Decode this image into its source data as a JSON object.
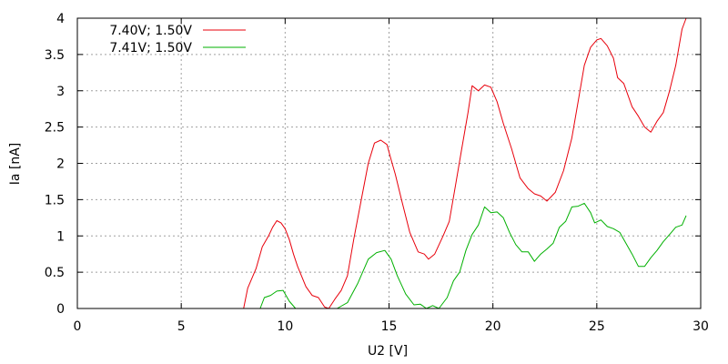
{
  "chart_data": {
    "type": "line",
    "title": "",
    "xlabel": "U2 [V]",
    "ylabel": "Ia [nA]",
    "xlim": [
      0,
      30
    ],
    "ylim": [
      0,
      4
    ],
    "x_ticks": [
      "0",
      "5",
      "10",
      "15",
      "20",
      "25",
      "30"
    ],
    "y_ticks": [
      "0",
      "0.5",
      "1",
      "1.5",
      "2",
      "2.5",
      "3",
      "3.5",
      "4"
    ],
    "grid": true,
    "legend_position": "top-left",
    "series": [
      {
        "name": "7.40V; 1.50V",
        "color": "#e8000b",
        "x": [
          8.0,
          8.2,
          8.6,
          8.9,
          9.2,
          9.4,
          9.6,
          9.8,
          10.0,
          10.2,
          10.4,
          10.6,
          11.0,
          11.3,
          11.6,
          11.9,
          12.1,
          12.4,
          12.7,
          13.0,
          13.3,
          13.7,
          14.0,
          14.3,
          14.6,
          14.9,
          15.1,
          15.3,
          15.6,
          16.0,
          16.4,
          16.7,
          16.9,
          17.2,
          17.6,
          17.9,
          18.2,
          18.5,
          18.8,
          19.0,
          19.3,
          19.6,
          19.9,
          20.2,
          20.5,
          20.9,
          21.3,
          21.7,
          22.0,
          22.3,
          22.6,
          23.0,
          23.4,
          23.8,
          24.1,
          24.4,
          24.7,
          25.0,
          25.2,
          25.5,
          25.8,
          26.0,
          26.3,
          26.7,
          27.0,
          27.3,
          27.6,
          27.9,
          28.2,
          28.5,
          28.8,
          29.1,
          29.3
        ],
        "y": [
          0.0,
          0.28,
          0.55,
          0.85,
          1.0,
          1.12,
          1.21,
          1.18,
          1.1,
          0.95,
          0.75,
          0.58,
          0.3,
          0.18,
          0.15,
          0.02,
          0.0,
          0.13,
          0.25,
          0.45,
          0.95,
          1.55,
          2.0,
          2.28,
          2.32,
          2.26,
          2.05,
          1.85,
          1.5,
          1.05,
          0.78,
          0.75,
          0.68,
          0.75,
          1.0,
          1.2,
          1.7,
          2.2,
          2.7,
          3.07,
          3.0,
          3.08,
          3.05,
          2.85,
          2.55,
          2.2,
          1.8,
          1.65,
          1.58,
          1.55,
          1.48,
          1.6,
          1.9,
          2.35,
          2.85,
          3.35,
          3.6,
          3.7,
          3.72,
          3.62,
          3.45,
          3.18,
          3.1,
          2.78,
          2.65,
          2.5,
          2.43,
          2.58,
          2.7,
          3.0,
          3.35,
          3.85,
          4.0
        ]
      },
      {
        "name": "7.41V; 1.50V",
        "color": "#00b000",
        "x": [
          8.8,
          9.0,
          9.3,
          9.6,
          9.9,
          10.2,
          10.5,
          10.8,
          11.2,
          11.6,
          12.0,
          12.5,
          13.0,
          13.5,
          14.0,
          14.4,
          14.8,
          15.1,
          15.4,
          15.8,
          16.2,
          16.5,
          16.8,
          17.1,
          17.4,
          17.8,
          18.1,
          18.4,
          18.7,
          19.0,
          19.3,
          19.6,
          19.9,
          20.2,
          20.5,
          20.8,
          21.1,
          21.4,
          21.7,
          22.0,
          22.3,
          22.6,
          22.9,
          23.2,
          23.5,
          23.8,
          24.1,
          24.4,
          24.7,
          24.9,
          25.2,
          25.5,
          25.8,
          26.1,
          26.4,
          26.7,
          27.0,
          27.3,
          27.6,
          27.9,
          28.2,
          28.5,
          28.8,
          29.1,
          29.3
        ],
        "y": [
          0.0,
          0.15,
          0.18,
          0.24,
          0.25,
          0.1,
          0.0,
          0.0,
          0.0,
          0.0,
          0.0,
          0.0,
          0.08,
          0.35,
          0.68,
          0.77,
          0.8,
          0.68,
          0.45,
          0.2,
          0.05,
          0.06,
          0.0,
          0.04,
          0.0,
          0.15,
          0.38,
          0.5,
          0.8,
          1.02,
          1.15,
          1.4,
          1.32,
          1.33,
          1.25,
          1.05,
          0.88,
          0.78,
          0.78,
          0.65,
          0.75,
          0.82,
          0.9,
          1.12,
          1.2,
          1.4,
          1.41,
          1.45,
          1.32,
          1.18,
          1.22,
          1.13,
          1.1,
          1.05,
          0.9,
          0.75,
          0.58,
          0.58,
          0.7,
          0.8,
          0.92,
          1.02,
          1.12,
          1.15,
          1.28
        ]
      }
    ]
  }
}
